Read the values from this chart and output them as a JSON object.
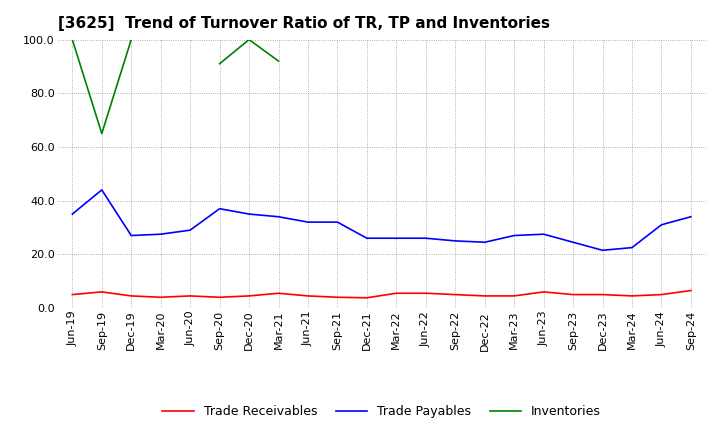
{
  "title": "[3625]  Trend of Turnover Ratio of TR, TP and Inventories",
  "x_labels": [
    "Jun-19",
    "Sep-19",
    "Dec-19",
    "Mar-20",
    "Jun-20",
    "Sep-20",
    "Dec-20",
    "Mar-21",
    "Jun-21",
    "Sep-21",
    "Dec-21",
    "Mar-22",
    "Jun-22",
    "Sep-22",
    "Dec-22",
    "Mar-23",
    "Jun-23",
    "Sep-23",
    "Dec-23",
    "Mar-24",
    "Jun-24",
    "Sep-24"
  ],
  "trade_receivables": [
    5.0,
    6.0,
    4.5,
    4.0,
    4.5,
    4.0,
    4.5,
    5.5,
    4.5,
    4.0,
    3.8,
    5.5,
    5.5,
    5.0,
    4.5,
    4.5,
    6.0,
    5.0,
    5.0,
    4.5,
    5.0,
    6.5
  ],
  "trade_payables": [
    35.0,
    44.0,
    27.0,
    27.5,
    29.0,
    37.0,
    35.0,
    34.0,
    32.0,
    32.0,
    26.0,
    26.0,
    26.0,
    25.0,
    24.5,
    27.0,
    27.5,
    24.5,
    21.5,
    22.5,
    31.0,
    34.0
  ],
  "inventories": [
    100.0,
    65.0,
    100.0,
    null,
    null,
    91.0,
    100.0,
    92.0,
    null,
    null,
    null,
    null,
    null,
    null,
    null,
    null,
    null,
    null,
    null,
    null,
    null,
    null
  ],
  "ylim": [
    0.0,
    100.0
  ],
  "yticks": [
    0.0,
    20.0,
    40.0,
    60.0,
    80.0,
    100.0
  ],
  "tr_color": "#ff0000",
  "tp_color": "#0000ff",
  "inv_color": "#008000",
  "legend_labels": [
    "Trade Receivables",
    "Trade Payables",
    "Inventories"
  ],
  "title_fontsize": 11,
  "tick_fontsize": 8,
  "legend_fontsize": 9,
  "background_color": "#ffffff",
  "grid_color": "#999999"
}
